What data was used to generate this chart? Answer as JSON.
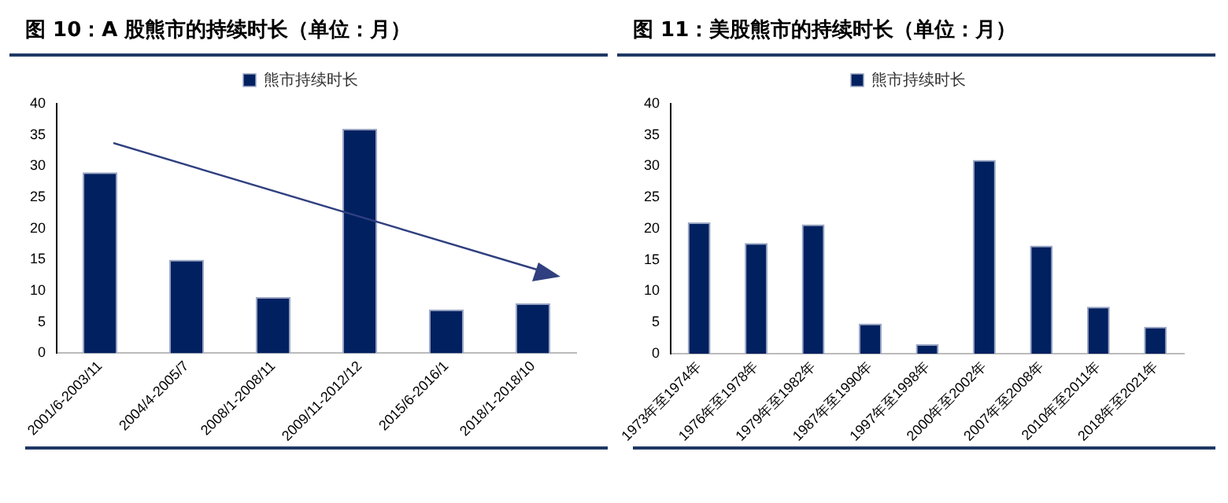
{
  "chart_data": [
    {
      "type": "bar",
      "title": "图 10：A 股熊市的持续时长（单位：月）",
      "categories": [
        "2001/6-2003/11",
        "2004/4-2005/7",
        "2008/1-2008/11",
        "2009/11-2012/12",
        "2015/6-2016/1",
        "2018/1-2018/10"
      ],
      "series": [
        {
          "name": "熊市持续时长",
          "color": "#002060",
          "values": [
            29,
            15,
            9,
            36,
            7,
            8
          ]
        }
      ],
      "ylim": [
        0,
        40
      ],
      "yticks": [
        0,
        5,
        10,
        15,
        20,
        25,
        30,
        35,
        40
      ],
      "grid": false,
      "legend": "top"
    },
    {
      "type": "bar",
      "title": "图 11：美股熊市的持续时长（单位：月）",
      "categories": [
        "1973年至1974年",
        "1976年至1978年",
        "1979年至1982年",
        "1987年至1990年",
        "1997年至1998年",
        "2000年至2002年",
        "2007年至2008年",
        "2010年至2011年",
        "2018年至2021年"
      ],
      "series": [
        {
          "name": "熊市持续时长",
          "color": "#002060",
          "values": [
            21,
            17.7,
            20.7,
            4.8,
            1.5,
            31,
            17.3,
            7.5,
            4.3
          ]
        }
      ],
      "ylim": [
        0,
        40
      ],
      "yticks": [
        0,
        5,
        10,
        15,
        20,
        25,
        30,
        35,
        40
      ],
      "grid": false,
      "legend": "top"
    }
  ]
}
